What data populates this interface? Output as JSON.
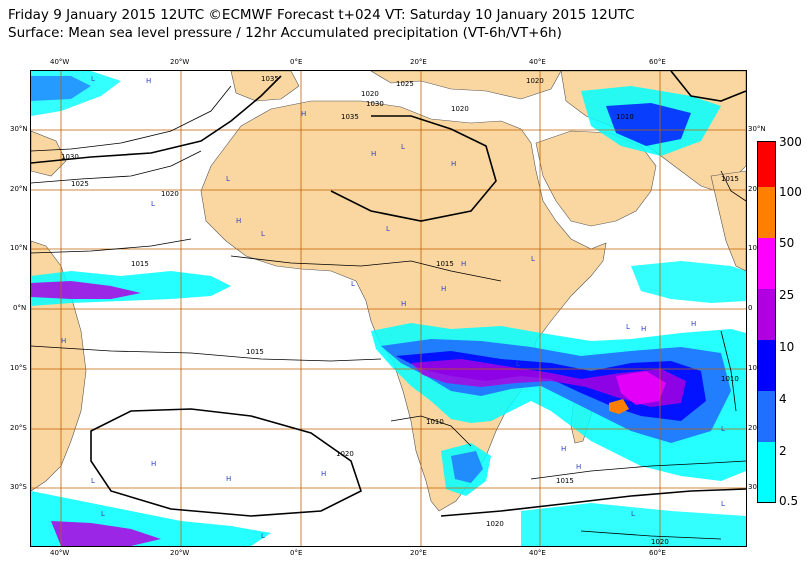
{
  "header": {
    "title_line1": "Friday 9 January 2015 12UTC ©ECMWF Forecast t+024 VT: Saturday 10 January 2015 12UTC",
    "title_line2": "Surface: Mean sea level pressure / 12hr Accumulated precipitation (VT-6h/VT+6h)"
  },
  "axes": {
    "lon_top": [
      "40°W",
      "20°W",
      "0°E",
      "20°E",
      "40°E",
      "60°E"
    ],
    "lat_left": [
      "30°N",
      "20°N",
      "10°N",
      "0°N",
      "10°S",
      "20°S",
      "30°S"
    ],
    "lat_right": [
      "30°N",
      "20",
      "10",
      "0",
      "10",
      "20",
      "30"
    ]
  },
  "legend": {
    "labels": [
      "300",
      "100",
      "50",
      "25",
      "10",
      "4",
      "2",
      "0.5"
    ],
    "colors": [
      "#ff0000",
      "#ff8000",
      "#ff00ff",
      "#b000e0",
      "#0000ff",
      "#2070ff",
      "#00d0ff",
      "#00ffff"
    ]
  },
  "colors": {
    "land": "#fad7a0",
    "ocean": "#ffffff",
    "grid": "#c06000",
    "isobar": "#000000",
    "low_high_marker": "#3040c0"
  },
  "isobar_labels": [
    "1035",
    "1025",
    "1020",
    "1030",
    "1035",
    "1020",
    "1020",
    "1030",
    "1025",
    "1020",
    "1015",
    "1015",
    "1015",
    "1010",
    "1020",
    "1015",
    "1010",
    "1020",
    "1020",
    "1015",
    "1010"
  ],
  "pressure_centres": [
    "H",
    "L",
    "H",
    "L",
    "H",
    "H",
    "L",
    "L",
    "H",
    "L",
    "H",
    "H",
    "L",
    "H",
    "L",
    "L",
    "H",
    "H",
    "L",
    "H",
    "L",
    "H",
    "L",
    "H",
    "H",
    "L",
    "L",
    "H",
    "L",
    "L",
    "L",
    "H"
  ]
}
